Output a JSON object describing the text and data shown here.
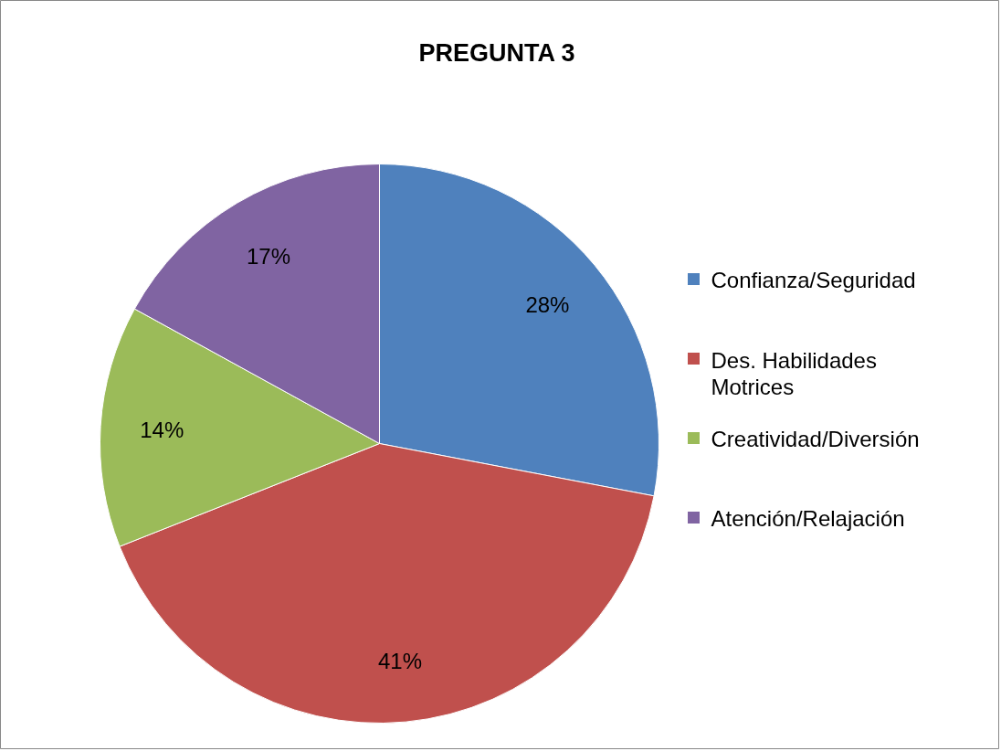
{
  "chart_data": {
    "type": "pie",
    "title": "PREGUNTA 3",
    "categories": [
      "Confianza/Seguridad",
      "Des. Habilidades Motrices",
      "Creatividad/Diversión",
      "Atención/Relajación"
    ],
    "values": [
      28,
      41,
      14,
      17
    ],
    "colors": [
      "#4f81bd",
      "#c0504d",
      "#9bbb59",
      "#8064a2"
    ],
    "value_labels": [
      "28%",
      "41%",
      "14%",
      "17%"
    ],
    "legend": "right"
  }
}
